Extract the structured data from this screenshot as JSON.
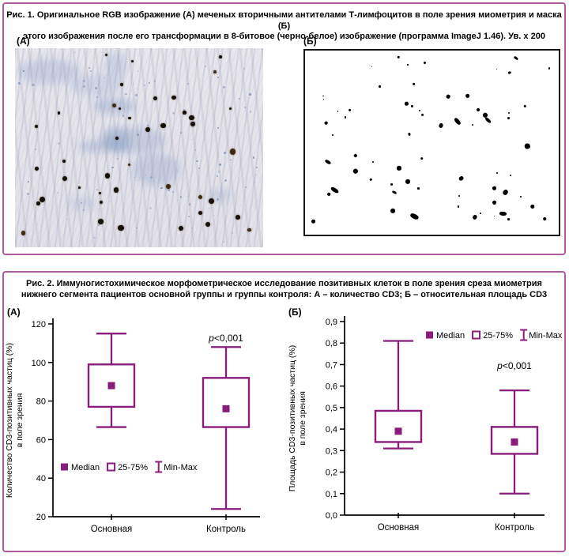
{
  "colors": {
    "panel_border": "#ad5a9e",
    "plot_purple": "#8a1d7b",
    "mask_border": "#161616",
    "text": "#000000"
  },
  "figure1": {
    "caption_lines": [
      "Рис. 1. Оригинальное RGB изображение (А) меченых вторичными антителами Т-лимфоцитов в поле зрения миометрия и маска (Б)",
      "этого изображения после его трансформации в 8-битовое (черно-белое) изображение (программа ImageJ 1.46). Ув. х 200"
    ],
    "panel_a_label": "(А)",
    "panel_b_label": "(Б)"
  },
  "figure2": {
    "caption_lines": [
      "Рис. 2. Иммуногистохимическое морфометрическое исследование позитивных клеток в поле зрения среза миометрия",
      "нижнего сегмента пациентов основной группы и группы контроля: А – количество CD3; Б – относительная площадь CD3"
    ],
    "panel_a_label": "(А)",
    "panel_b_label": "(Б)"
  },
  "chart_data": [
    {
      "type": "box",
      "panel": "А",
      "title": "",
      "ylabel_lines": [
        "Количество CD3-позитивных частиц (%)",
        "в поле зрения"
      ],
      "xlabel": "",
      "categories": [
        "Основная",
        "Контроль"
      ],
      "ylim": [
        20,
        120
      ],
      "ytick_step": 20,
      "ytick_decimals": 0,
      "grid": false,
      "legend_position": "inside-bottom-left",
      "legend_items": [
        "Median",
        "25-75%",
        "Min-Max"
      ],
      "series": [
        {
          "name": "Основная",
          "min": 66.5,
          "q1": 77,
          "median": 88,
          "q3": 99,
          "max": 115
        },
        {
          "name": "Контроль",
          "min": 24,
          "q1": 66.5,
          "median": 76,
          "q3": 92,
          "max": 108
        }
      ],
      "annotation": {
        "italic": "p",
        "text": "<0,001",
        "category_index": 1
      }
    },
    {
      "type": "box",
      "panel": "Б",
      "title": "",
      "ylabel_lines": [
        "Площадь CD3-позитивных частиц (%)",
        "в поле зрения"
      ],
      "xlabel": "",
      "categories": [
        "Основная",
        "Контроль"
      ],
      "ylim": [
        0,
        0.9
      ],
      "ytick_step": 0.1,
      "ytick_decimals": 1,
      "grid": false,
      "legend_position": "inside-top-right",
      "legend_items": [
        "Median",
        "25-75%",
        "Min-Max"
      ],
      "series": [
        {
          "name": "Основная",
          "min": 0.31,
          "q1": 0.34,
          "median": 0.39,
          "q3": 0.485,
          "max": 0.81
        },
        {
          "name": "Контроль",
          "min": 0.1,
          "q1": 0.285,
          "median": 0.34,
          "q3": 0.41,
          "max": 0.58
        }
      ],
      "annotation": {
        "italic": "p",
        "text": "<0,001",
        "category_index": 1
      }
    }
  ]
}
